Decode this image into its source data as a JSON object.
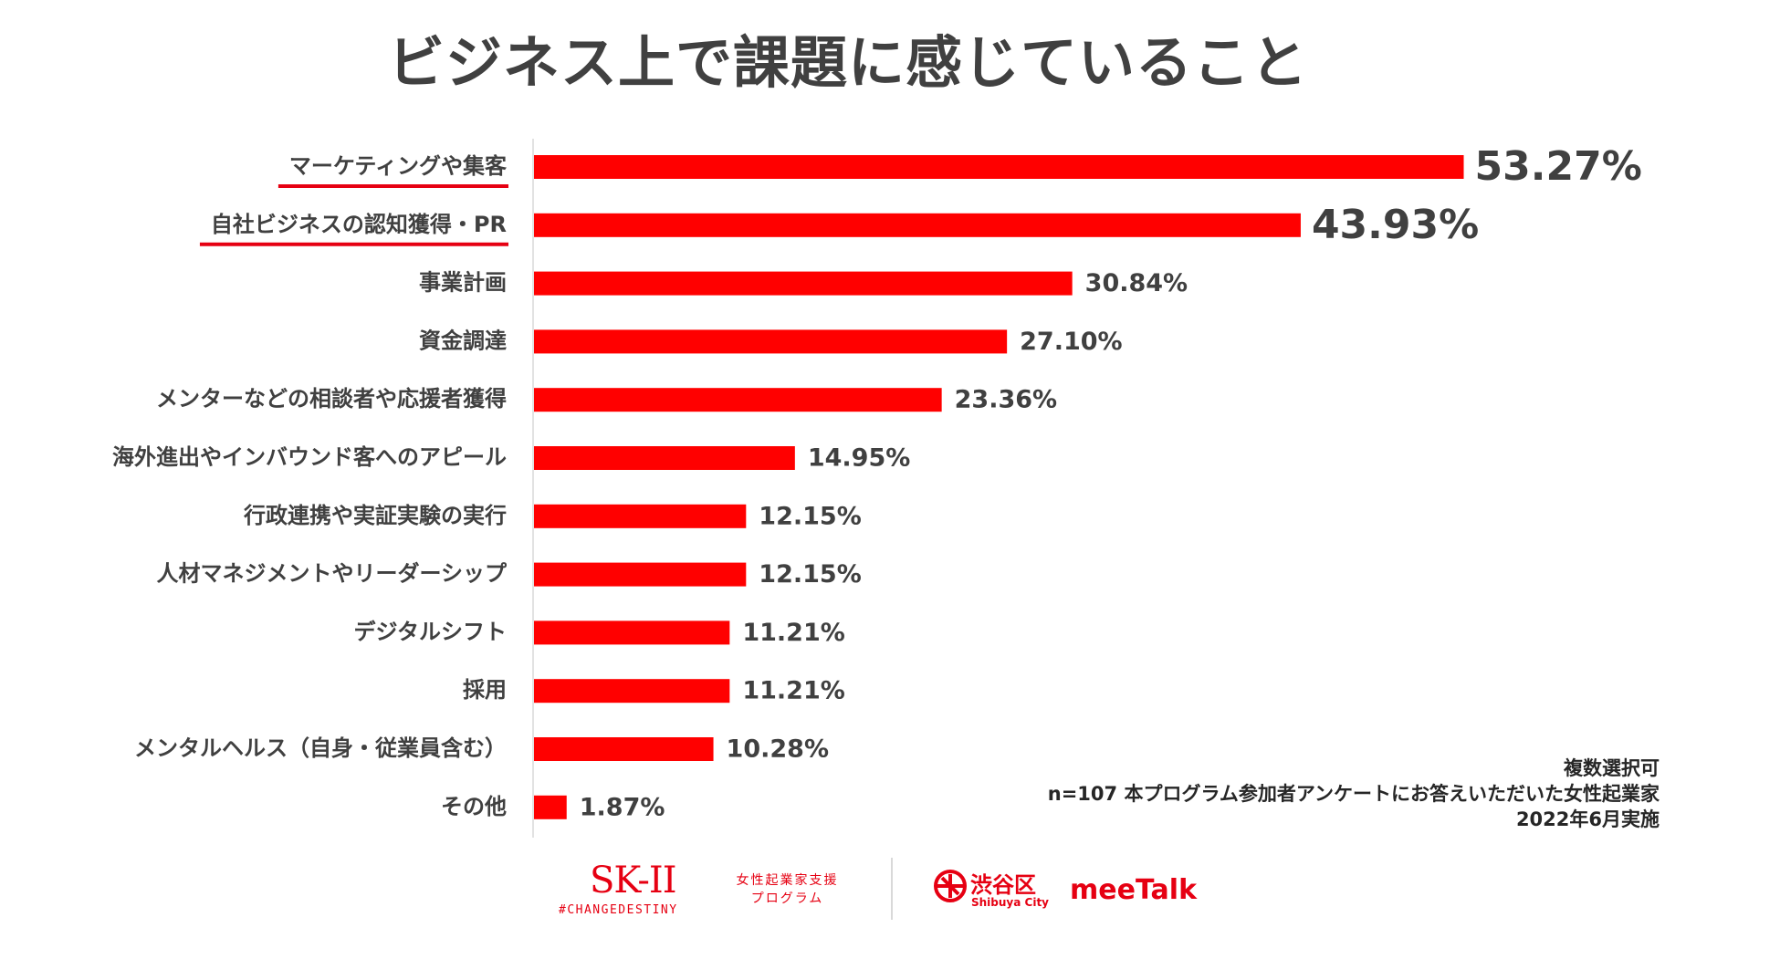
{
  "title": "ビジネス上で課題に感じていること",
  "chart_data": {
    "type": "bar",
    "orientation": "horizontal",
    "categories": [
      "マーケティングや集客",
      "自社ビジネスの認知獲得・PR",
      "事業計画",
      "資金調達",
      "メンターなどの相談者や応援者獲得",
      "海外進出やインバウンド客へのアピール",
      "行政連携や実証実験の実行",
      "人材マネジメントやリーダーシップ",
      "デジタルシフト",
      "採用",
      "メンタルヘルス（自身・従業員含む）",
      "その他"
    ],
    "values": [
      53.27,
      43.93,
      30.84,
      27.1,
      23.36,
      14.95,
      12.15,
      12.15,
      11.21,
      11.21,
      10.28,
      1.87
    ],
    "value_labels": [
      "53.27%",
      "43.93%",
      "30.84%",
      "27.10%",
      "23.36%",
      "14.95%",
      "12.15%",
      "12.15%",
      "11.21%",
      "11.21%",
      "10.28%",
      "1.87%"
    ],
    "highlighted": [
      0,
      1
    ],
    "bar_color": "#ff0000",
    "underline_color": "#e60012",
    "unit": "%",
    "grid": false
  },
  "notes": [
    "複数選択可",
    "n=107 本プログラム参加者アンケートにお答えいただいた女性起業家",
    "2022年6月実施"
  ],
  "footer": {
    "brand_color": "#e60012",
    "sk2_logo": "SK-II",
    "sk2_hashtag": "#CHANGEDESTINY",
    "program_line1": "女性起業家支援",
    "program_line2": "プログラム",
    "shibuya_name": "渋谷区",
    "shibuya_en": "Shibuya City",
    "meetalk": "meeTalk"
  }
}
